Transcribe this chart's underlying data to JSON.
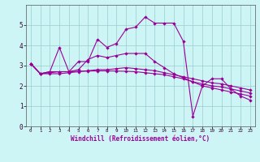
{
  "title": "",
  "xlabel": "Windchill (Refroidissement éolien,°C)",
  "ylabel": "",
  "bg_color": "#cef5f5",
  "line_color": "#990099",
  "grid_color": "#99cccc",
  "xlim": [
    -0.5,
    23.5
  ],
  "ylim": [
    0,
    6
  ],
  "xticks": [
    0,
    1,
    2,
    3,
    4,
    5,
    6,
    7,
    8,
    9,
    10,
    11,
    12,
    13,
    14,
    15,
    16,
    17,
    18,
    19,
    20,
    21,
    22,
    23
  ],
  "yticks": [
    0,
    1,
    2,
    3,
    4,
    5
  ],
  "line1_x": [
    0,
    1,
    2,
    3,
    4,
    5,
    6,
    7,
    8,
    9,
    10,
    11,
    12,
    13,
    14,
    15,
    16,
    17,
    18,
    19,
    20,
    21,
    22,
    23
  ],
  "line1_y": [
    3.1,
    2.6,
    2.7,
    3.9,
    2.7,
    3.2,
    3.2,
    4.3,
    3.9,
    4.1,
    4.8,
    4.9,
    5.4,
    5.1,
    5.1,
    5.1,
    4.2,
    0.5,
    2.0,
    2.35,
    2.35,
    1.85,
    1.5,
    1.3
  ],
  "line2_x": [
    0,
    1,
    2,
    3,
    4,
    5,
    6,
    7,
    8,
    9,
    10,
    11,
    12,
    13,
    14,
    15,
    16,
    17,
    18,
    19,
    20,
    21,
    22,
    23
  ],
  "line2_y": [
    3.1,
    2.6,
    2.7,
    2.7,
    2.7,
    2.8,
    3.3,
    3.5,
    3.4,
    3.5,
    3.6,
    3.6,
    3.6,
    3.2,
    2.9,
    2.6,
    2.4,
    2.2,
    2.0,
    1.9,
    1.8,
    1.7,
    1.6,
    1.5
  ],
  "line3_x": [
    0,
    1,
    2,
    3,
    4,
    5,
    6,
    7,
    8,
    9,
    10,
    11,
    12,
    13,
    14,
    15,
    16,
    17,
    18,
    19,
    20,
    21,
    22,
    23
  ],
  "line3_y": [
    3.1,
    2.6,
    2.6,
    2.6,
    2.65,
    2.7,
    2.75,
    2.8,
    2.8,
    2.85,
    2.9,
    2.85,
    2.8,
    2.75,
    2.65,
    2.55,
    2.45,
    2.35,
    2.25,
    2.15,
    2.1,
    2.0,
    1.9,
    1.8
  ],
  "line4_x": [
    0,
    1,
    2,
    3,
    4,
    5,
    6,
    7,
    8,
    9,
    10,
    11,
    12,
    13,
    14,
    15,
    16,
    17,
    18,
    19,
    20,
    21,
    22,
    23
  ],
  "line4_y": [
    3.1,
    2.6,
    2.65,
    2.7,
    2.7,
    2.72,
    2.73,
    2.74,
    2.74,
    2.73,
    2.72,
    2.7,
    2.65,
    2.6,
    2.55,
    2.45,
    2.35,
    2.2,
    2.1,
    2.0,
    1.95,
    1.85,
    1.75,
    1.65
  ],
  "xlabel_fontsize": 5.5,
  "xtick_fontsize": 4.2,
  "ytick_fontsize": 5.5,
  "linewidth": 0.8,
  "markersize": 2.2
}
